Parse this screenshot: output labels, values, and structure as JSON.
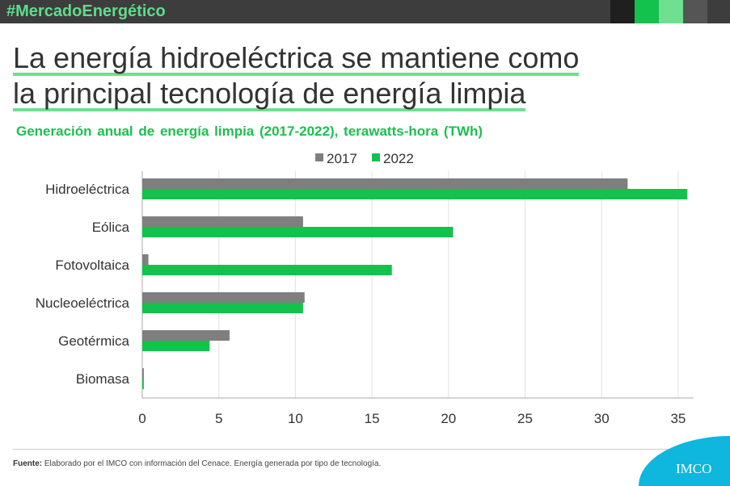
{
  "header": {
    "hashtag": "#MercadoEnergético",
    "accent_colors": [
      "#1f1f1f",
      "#13c24c",
      "#6ee08f",
      "#555555"
    ]
  },
  "title_lines": [
    "La energía hidroeléctrica se mantiene como",
    "la principal tecnología de energía limpia"
  ],
  "footer": {
    "source_label": "Fuente:",
    "source_text": " Elaborado por el IMCO con información del Cenace. Energía generada por tipo de tecnología.",
    "logo": "IMCO"
  },
  "chart_data": {
    "type": "bar",
    "orientation": "horizontal",
    "title": "Generación anual de energía limpia (2017-2022), terawatts-hora (TWh)",
    "categories": [
      "Hidroeléctrica",
      "Eólica",
      "Fotovoltaica",
      "Nucleoeléctrica",
      "Geotérmica",
      "Biomasa"
    ],
    "series": [
      {
        "name": "2017",
        "color": "#7f7f7f",
        "values": [
          31.7,
          10.5,
          0.4,
          10.6,
          5.7,
          0.1
        ]
      },
      {
        "name": "2022",
        "color": "#13c24c",
        "values": [
          35.6,
          20.3,
          16.3,
          10.5,
          4.4,
          0.1
        ]
      }
    ],
    "xticks": [
      0,
      5,
      10,
      15,
      20,
      25,
      30,
      35
    ],
    "xlim": [
      0,
      36
    ],
    "grid": true,
    "legend": "top"
  }
}
